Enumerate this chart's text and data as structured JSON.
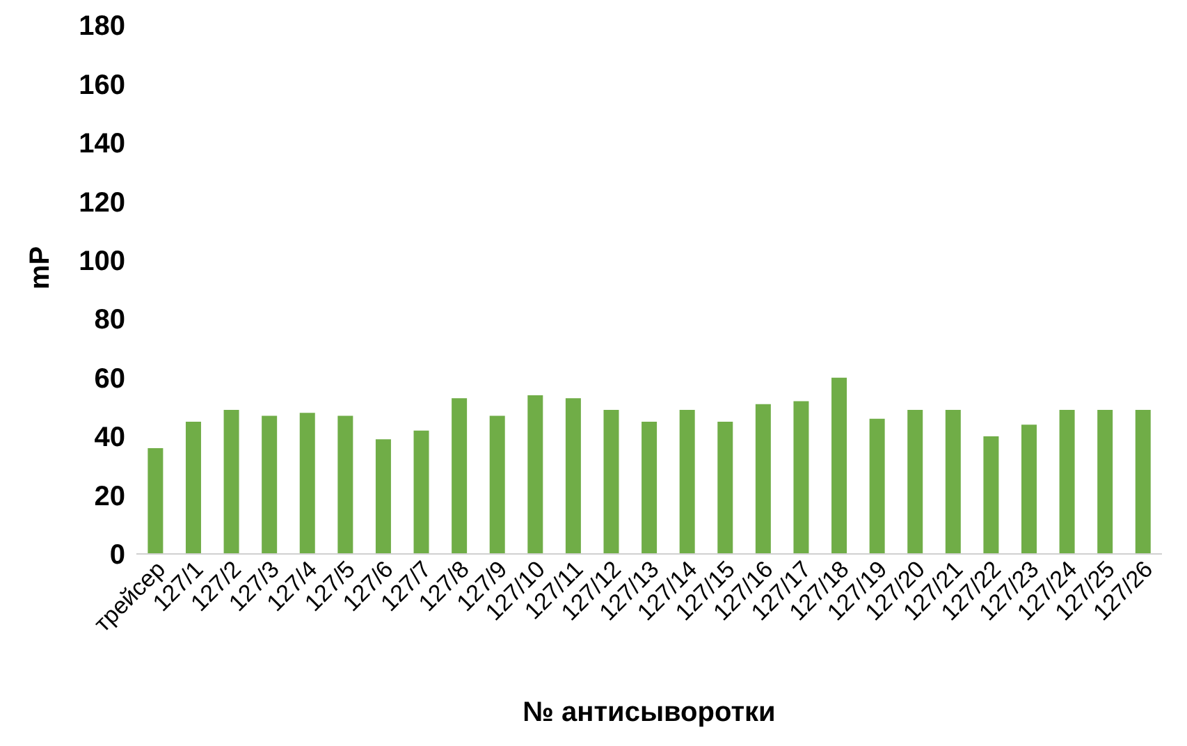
{
  "chart_data": {
    "type": "bar",
    "xlabel": "№ антисыворотки",
    "ylabel": "mP",
    "categories": [
      "трейсер",
      "127/1",
      "127/2",
      "127/3",
      "127/4",
      "127/5",
      "127/6",
      "127/7",
      "127/8",
      "127/9",
      "127/10",
      "127/11",
      "127/12",
      "127/13",
      "127/14",
      "127/15",
      "127/16",
      "127/17",
      "127/18",
      "127/19",
      "127/20",
      "127/21",
      "127/22",
      "127/23",
      "127/24",
      "127/25",
      "127/26"
    ],
    "values": [
      36,
      45,
      49,
      47,
      48,
      47,
      39,
      42,
      53,
      47,
      54,
      53,
      49,
      45,
      49,
      45,
      51,
      52,
      60,
      46,
      49,
      49,
      40,
      44,
      49,
      49,
      49
    ],
    "color": "#70ad47",
    "ylim": [
      0,
      180
    ],
    "yticks": [
      0,
      20,
      40,
      60,
      80,
      100,
      120,
      140,
      160,
      180
    ],
    "grid": false
  }
}
